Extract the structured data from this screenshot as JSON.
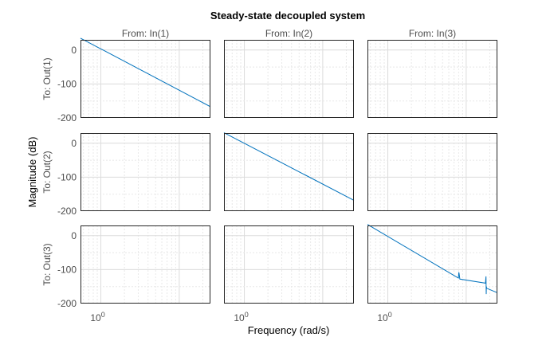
{
  "chart_data": {
    "type": "line",
    "title": "Steady-state decoupled system",
    "xlabel": "Frequency  (rad/s)",
    "ylabel": "Magnitude (dB)",
    "xscale": "log",
    "xlim": [
      0.55,
      25
    ],
    "ylim": [
      -200,
      30
    ],
    "yticks": [
      0,
      -100,
      -200
    ],
    "ytick_labels": [
      "0",
      "-100",
      "-200"
    ],
    "xtick_base": "10",
    "xtick_exp": "0",
    "grid": true,
    "line_color": "#0072BD",
    "col_labels": [
      "From: In(1)",
      "From: In(2)",
      "From: In(3)"
    ],
    "row_labels": [
      "To: Out(1)",
      "To: Out(2)",
      "To: Out(3)"
    ],
    "diagonal_series": [
      {
        "row": 0,
        "col": 0,
        "x": [
          0.55,
          25
        ],
        "y": [
          35,
          -167
        ]
      },
      {
        "row": 1,
        "col": 1,
        "x": [
          0.55,
          25
        ],
        "y": [
          31,
          -168
        ]
      },
      {
        "row": 2,
        "col": 2,
        "x": [
          0.55,
          7.8,
          7.95,
          8.05,
          8.12,
          8.3,
          17.6,
          17.9,
          18.0,
          18.1,
          18.25,
          25
        ],
        "y": [
          33,
          -124,
          -125,
          -108,
          -112,
          -128,
          -140,
          -120,
          -172,
          -150,
          -155,
          -168
        ]
      }
    ]
  }
}
